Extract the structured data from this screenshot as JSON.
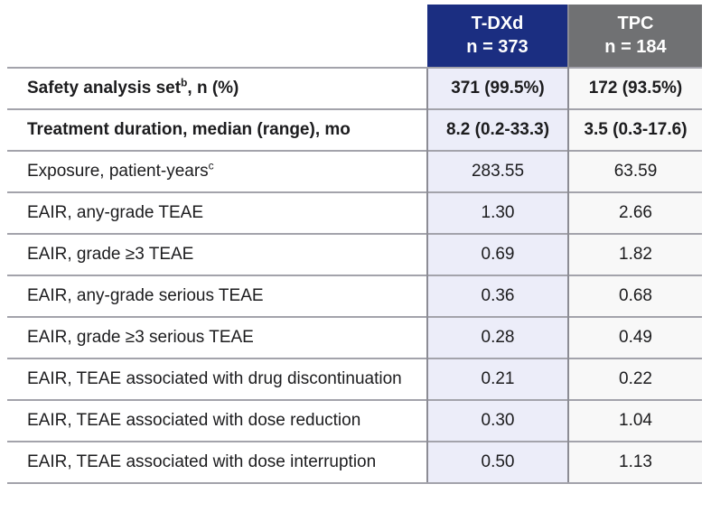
{
  "table": {
    "columns": [
      {
        "name": "T-DXd",
        "n": "n = 373",
        "bg": "#1B2E81"
      },
      {
        "name": "TPC",
        "n": "n = 184",
        "bg": "#707173"
      }
    ],
    "rows": [
      {
        "label": "Safety analysis set",
        "sup": "b",
        "suffix": ", n (%)",
        "tdxd": "371 (99.5%)",
        "tpc": "172 (93.5%)",
        "bold": true
      },
      {
        "label": "Treatment duration, median (range), mo",
        "sup": "",
        "suffix": "",
        "tdxd": "8.2 (0.2-33.3)",
        "tpc": "3.5 (0.3-17.6)",
        "bold": true
      },
      {
        "label": "Exposure, patient-years",
        "sup": "c",
        "suffix": "",
        "tdxd": "283.55",
        "tpc": "63.59",
        "bold": false
      },
      {
        "label": "EAIR, any-grade TEAE",
        "sup": "",
        "suffix": "",
        "tdxd": "1.30",
        "tpc": "2.66",
        "bold": false
      },
      {
        "label": "EAIR, grade ≥3 TEAE",
        "sup": "",
        "suffix": "",
        "tdxd": "0.69",
        "tpc": "1.82",
        "bold": false
      },
      {
        "label": "EAIR, any-grade serious TEAE",
        "sup": "",
        "suffix": "",
        "tdxd": "0.36",
        "tpc": "0.68",
        "bold": false
      },
      {
        "label": "EAIR, grade ≥3 serious TEAE",
        "sup": "",
        "suffix": "",
        "tdxd": "0.28",
        "tpc": "0.49",
        "bold": false
      },
      {
        "label": "EAIR, TEAE associated with drug discontinuation",
        "sup": "",
        "suffix": "",
        "tdxd": "0.21",
        "tpc": "0.22",
        "bold": false
      },
      {
        "label": "EAIR, TEAE associated with dose reduction",
        "sup": "",
        "suffix": "",
        "tdxd": "0.30",
        "tpc": "1.04",
        "bold": false
      },
      {
        "label": "EAIR, TEAE associated with dose interruption",
        "sup": "",
        "suffix": "",
        "tdxd": "0.50",
        "tpc": "1.13",
        "bold": false
      }
    ]
  },
  "colors": {
    "header_blue": "#1B2E81",
    "header_gray": "#707173",
    "tdxd_column_bg": "#ECEDF9",
    "tpc_column_bg": "#F8F8F8",
    "grid_line": "#A3A3AB",
    "column_separator": "#8C8C94",
    "header_text": "#FFFFFF",
    "body_text": "#1C1C1E"
  }
}
